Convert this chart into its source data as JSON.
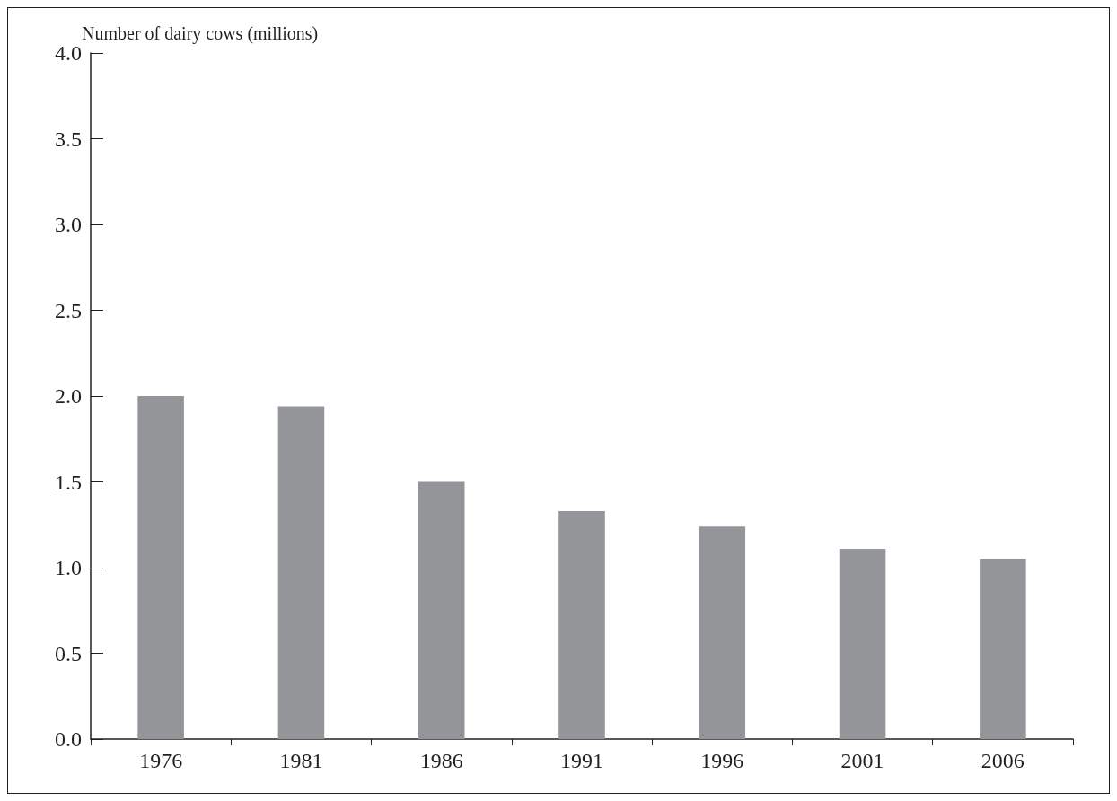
{
  "chart_data": {
    "type": "bar",
    "ylabel": "Number of dairy cows (millions)",
    "categories": [
      "1976",
      "1981",
      "1986",
      "1991",
      "1996",
      "2001",
      "2006"
    ],
    "values": [
      2.0,
      1.94,
      1.5,
      1.33,
      1.24,
      1.11,
      1.05
    ],
    "color": "#939598",
    "ylim": [
      0,
      4
    ],
    "yticks": [
      {
        "value": 0,
        "label": "0.0"
      },
      {
        "value": 0.5,
        "label": "0.5"
      },
      {
        "value": 1,
        "label": "1.0"
      },
      {
        "value": 1.5,
        "label": "1.5"
      },
      {
        "value": 2,
        "label": "2.0"
      },
      {
        "value": 2.5,
        "label": "2.5"
      },
      {
        "value": 3,
        "label": "3.0"
      },
      {
        "value": 3.5,
        "label": "3.5"
      },
      {
        "value": 4,
        "label": "4.0"
      }
    ],
    "grid": false
  }
}
